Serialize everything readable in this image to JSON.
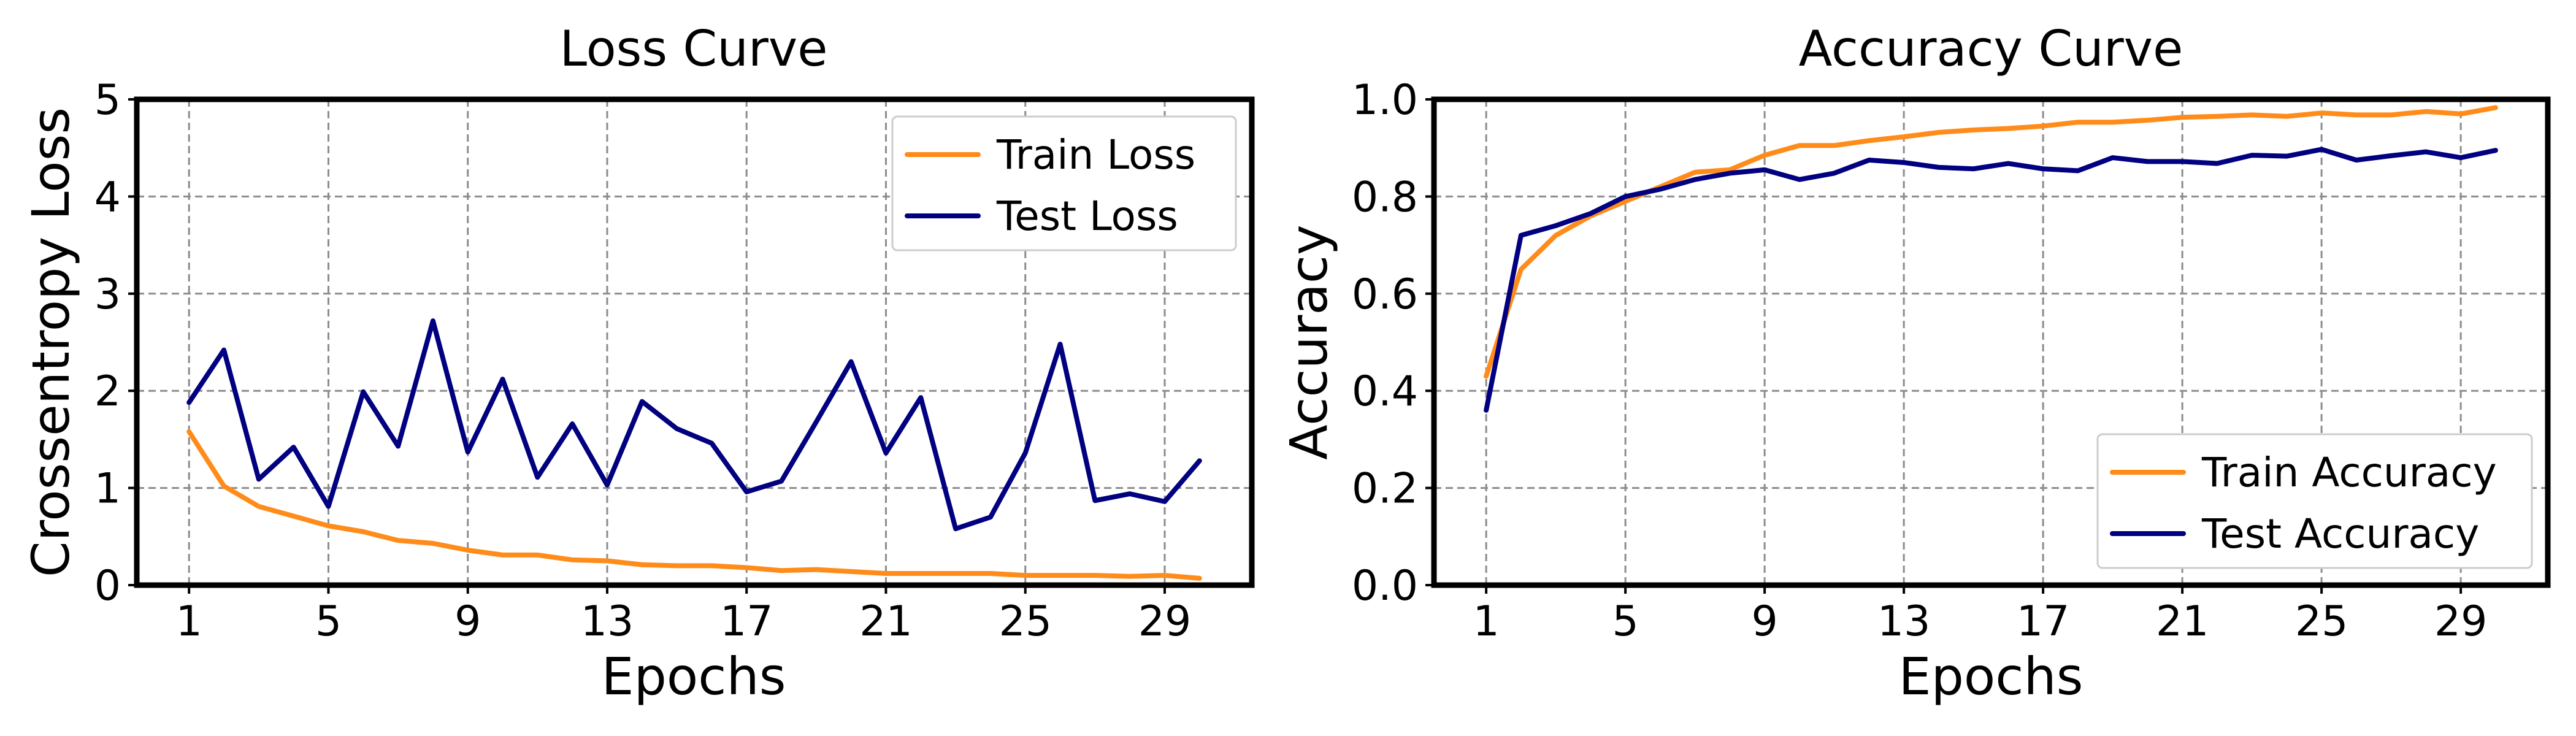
{
  "chart_data": [
    {
      "type": "line",
      "title": "Loss Curve",
      "xlabel": "Epochs",
      "ylabel": "Crossentropy Loss",
      "x": [
        1,
        2,
        3,
        4,
        5,
        6,
        7,
        8,
        9,
        10,
        11,
        12,
        13,
        14,
        15,
        16,
        17,
        18,
        19,
        20,
        21,
        22,
        23,
        24,
        25,
        26,
        27,
        28,
        29,
        30
      ],
      "xlim": [
        -0.5,
        31.5
      ],
      "ylim": [
        0,
        5
      ],
      "xticks": [
        1,
        5,
        9,
        13,
        17,
        21,
        25,
        29
      ],
      "yticks": [
        0,
        1,
        2,
        3,
        4,
        5
      ],
      "ytick_labels": [
        "0",
        "1",
        "2",
        "3",
        "4",
        "5"
      ],
      "grid": true,
      "legend_position": "top-right",
      "series": [
        {
          "name": "Train Loss",
          "color": "#ff8c1a",
          "values": [
            1.58,
            1.02,
            0.81,
            0.71,
            0.61,
            0.55,
            0.46,
            0.43,
            0.36,
            0.31,
            0.31,
            0.26,
            0.25,
            0.21,
            0.2,
            0.2,
            0.18,
            0.15,
            0.16,
            0.14,
            0.12,
            0.12,
            0.12,
            0.12,
            0.1,
            0.1,
            0.1,
            0.09,
            0.1,
            0.07
          ]
        },
        {
          "name": "Test Loss",
          "color": "#000080",
          "values": [
            1.88,
            2.42,
            1.09,
            1.42,
            0.81,
            1.99,
            1.43,
            2.72,
            1.37,
            2.12,
            1.11,
            1.66,
            1.03,
            1.89,
            1.61,
            1.46,
            0.96,
            1.07,
            1.68,
            2.3,
            1.36,
            1.93,
            0.58,
            0.7,
            1.36,
            2.48,
            0.87,
            0.94,
            0.86,
            1.28
          ]
        }
      ]
    },
    {
      "type": "line",
      "title": "Accuracy Curve",
      "xlabel": "Epochs",
      "ylabel": "Accuracy",
      "x": [
        1,
        2,
        3,
        4,
        5,
        6,
        7,
        8,
        9,
        10,
        11,
        12,
        13,
        14,
        15,
        16,
        17,
        18,
        19,
        20,
        21,
        22,
        23,
        24,
        25,
        26,
        27,
        28,
        29,
        30
      ],
      "xlim": [
        -0.5,
        31.5
      ],
      "ylim": [
        0,
        1
      ],
      "xticks": [
        1,
        5,
        9,
        13,
        17,
        21,
        25,
        29
      ],
      "yticks": [
        0,
        0.2,
        0.4,
        0.6,
        0.8,
        1.0
      ],
      "ytick_labels": [
        "0.0",
        "0.2",
        "0.4",
        "0.6",
        "0.8",
        "1.0"
      ],
      "grid": true,
      "legend_position": "bottom-right",
      "series": [
        {
          "name": "Train Accuracy",
          "color": "#ff8c1a",
          "values": [
            0.43,
            0.65,
            0.72,
            0.76,
            0.79,
            0.82,
            0.85,
            0.855,
            0.885,
            0.905,
            0.905,
            0.915,
            0.923,
            0.932,
            0.937,
            0.94,
            0.945,
            0.953,
            0.953,
            0.957,
            0.963,
            0.965,
            0.968,
            0.965,
            0.972,
            0.968,
            0.968,
            0.975,
            0.97,
            0.983
          ]
        },
        {
          "name": "Test Accuracy",
          "color": "#000080",
          "values": [
            0.36,
            0.72,
            0.74,
            0.765,
            0.8,
            0.815,
            0.835,
            0.848,
            0.855,
            0.835,
            0.848,
            0.875,
            0.87,
            0.86,
            0.857,
            0.868,
            0.857,
            0.853,
            0.88,
            0.872,
            0.872,
            0.868,
            0.885,
            0.883,
            0.897,
            0.875,
            0.884,
            0.892,
            0.88,
            0.895
          ]
        }
      ]
    }
  ]
}
